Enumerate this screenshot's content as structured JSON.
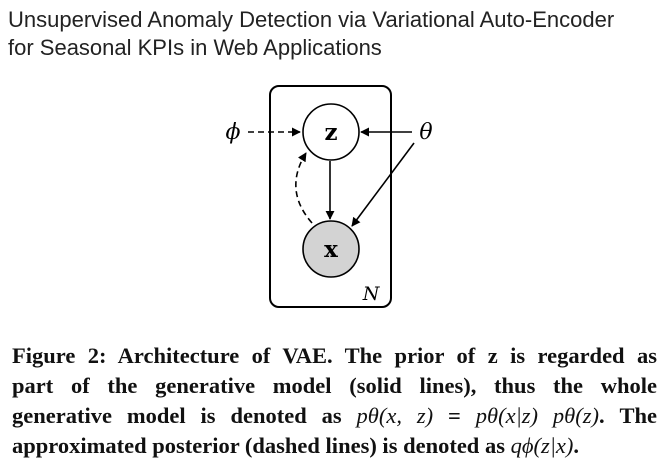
{
  "paper": {
    "title_line1": "Unsupervised Anomaly Detection via Variational Auto-Encoder",
    "title_line2": "for Seasonal KPIs in Web Applications"
  },
  "diagram": {
    "nodes": {
      "z": "z",
      "x": "x"
    },
    "params": {
      "phi": "ϕ",
      "theta": "θ"
    },
    "plate_label": "N",
    "colors": {
      "x_fill": "#d3d3d3",
      "z_fill": "#ffffff",
      "stroke": "#000000"
    }
  },
  "caption": {
    "line1": "Figure 2: Architecture of VAE. The prior of z is regarded as",
    "line2": "part of the generative model (solid lines), thus the whole",
    "line3_a": "generative model is denoted as ",
    "line3_formula1": "pθ(x, z)",
    "line3_eq": " = ",
    "line3_formula2": "pθ(x|z) pθ(z)",
    "line3_b": ". The",
    "line4_a": "approximated posterior (dashed lines) is denoted as ",
    "line4_formula": "qϕ(z|x)",
    "line4_b": "."
  }
}
